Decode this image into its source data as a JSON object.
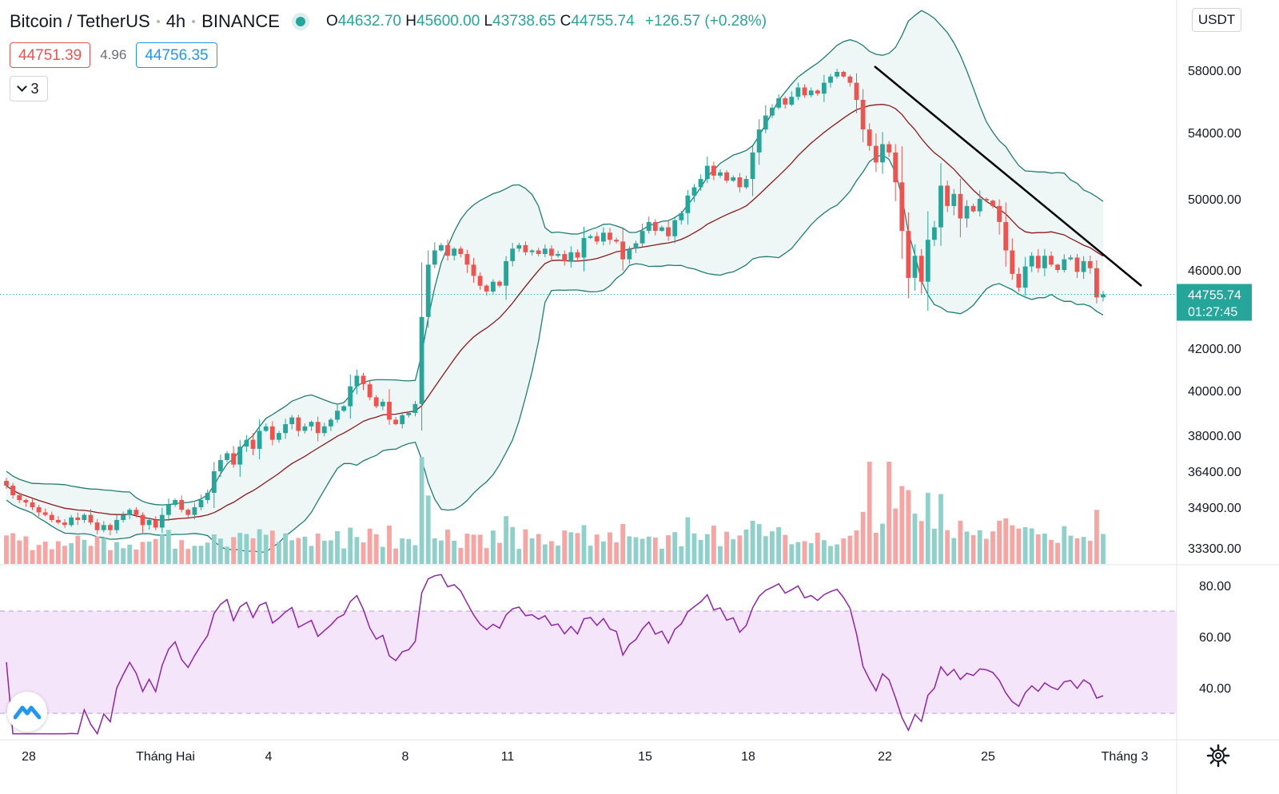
{
  "header": {
    "symbol": "Bitcoin / TetherUS",
    "interval": "4h",
    "exchange": "BINANCE",
    "open_key": "O",
    "open": "44632.70",
    "high_key": "H",
    "high": "45600.00",
    "low_key": "L",
    "low": "43738.65",
    "close_key": "C",
    "close": "44755.74",
    "change": "+126.57 (+0.28%)"
  },
  "quotes": {
    "sell": "44751.39",
    "spread": "4.96",
    "buy": "44756.35"
  },
  "collapse_count": "3",
  "currency_label": "USDT",
  "colors": {
    "up": "#26a69a",
    "down": "#ef5350",
    "vol_up": "#8fd1ca",
    "vol_down": "#f6a5a3",
    "band": "#1e7d74",
    "band_fill": "#eef7f6",
    "basis": "#8b1a1a",
    "rsi_line": "#8e24aa",
    "rsi_band": "#f4e5fb",
    "trendline": "#000000"
  },
  "chart_data": [
    {
      "type": "candlestick",
      "title": "Bitcoin / TetherUS, 4h, BINANCE",
      "price_ticks": [
        58000,
        54000,
        50000,
        46000,
        42000,
        40000,
        38000,
        36400,
        34900,
        33300
      ],
      "price_tick_labels": [
        "58000.00",
        "54000.00",
        "50000.00",
        "46000.00",
        "42000.00",
        "40000.00",
        "38000.00",
        "36400.00",
        "34900.00",
        "33300.00"
      ],
      "top_tick_partial": "6",
      "last_price": "44755.74",
      "countdown": "01:27:45",
      "x_labels": [
        "28",
        "Tháng Hai",
        "4",
        "8",
        "11",
        "15",
        "18",
        "22",
        "25",
        "Tháng 3"
      ],
      "close_series": [
        35800,
        35400,
        35200,
        35100,
        34900,
        34700,
        34600,
        34400,
        34300,
        34200,
        34500,
        34400,
        34600,
        34300,
        34000,
        34200,
        34000,
        34400,
        34600,
        34800,
        34600,
        34200,
        34400,
        34100,
        34600,
        35000,
        35200,
        34800,
        34600,
        34900,
        35200,
        35500,
        36400,
        36900,
        37200,
        36700,
        37500,
        37800,
        37400,
        38200,
        38400,
        37800,
        38100,
        38500,
        38800,
        38200,
        38400,
        38600,
        38100,
        38400,
        38700,
        39100,
        39300,
        40200,
        40700,
        40300,
        39700,
        39300,
        39500,
        38700,
        38500,
        38900,
        39000,
        39400,
        43600,
        46300,
        47100,
        47400,
        46800,
        47200,
        46900,
        46300,
        45700,
        45200,
        44900,
        45400,
        45200,
        46500,
        47200,
        47400,
        47000,
        47100,
        46900,
        47200,
        46800,
        46900,
        46500,
        47000,
        46700,
        47800,
        47900,
        47600,
        48100,
        47700,
        47600,
        46600,
        47200,
        47500,
        48200,
        48700,
        48200,
        48400,
        47900,
        48800,
        49200,
        50200,
        50700,
        51200,
        52000,
        51400,
        51600,
        51100,
        51300,
        50700,
        51200,
        52800,
        54200,
        55100,
        55600,
        56200,
        55800,
        56300,
        56900,
        56400,
        56700,
        56500,
        57200,
        57600,
        57900,
        57600,
        57200,
        56100,
        54200,
        53200,
        52200,
        53300,
        52800,
        51000,
        48200,
        45600,
        46800,
        45400,
        47700,
        48400,
        50800,
        49600,
        50300,
        48900,
        49600,
        49300,
        50000,
        49900,
        49600,
        48700,
        47100,
        45800,
        45100,
        46200,
        46800,
        46100,
        46800,
        46300,
        46000,
        46600,
        46700,
        45900,
        46500,
        46100,
        44600,
        44755
      ],
      "volume_note": "volume bars per candle, colored by direction",
      "indicators": [
        "Bollinger Bands (20, 2)",
        "Trendline"
      ]
    },
    {
      "type": "line",
      "title": "RSI",
      "ticks": [
        80,
        60,
        40
      ],
      "tick_labels": [
        "80.00",
        "60.00",
        "40.00"
      ],
      "band": [
        30,
        70
      ],
      "values_note": "RSI(14) of close_series"
    }
  ]
}
